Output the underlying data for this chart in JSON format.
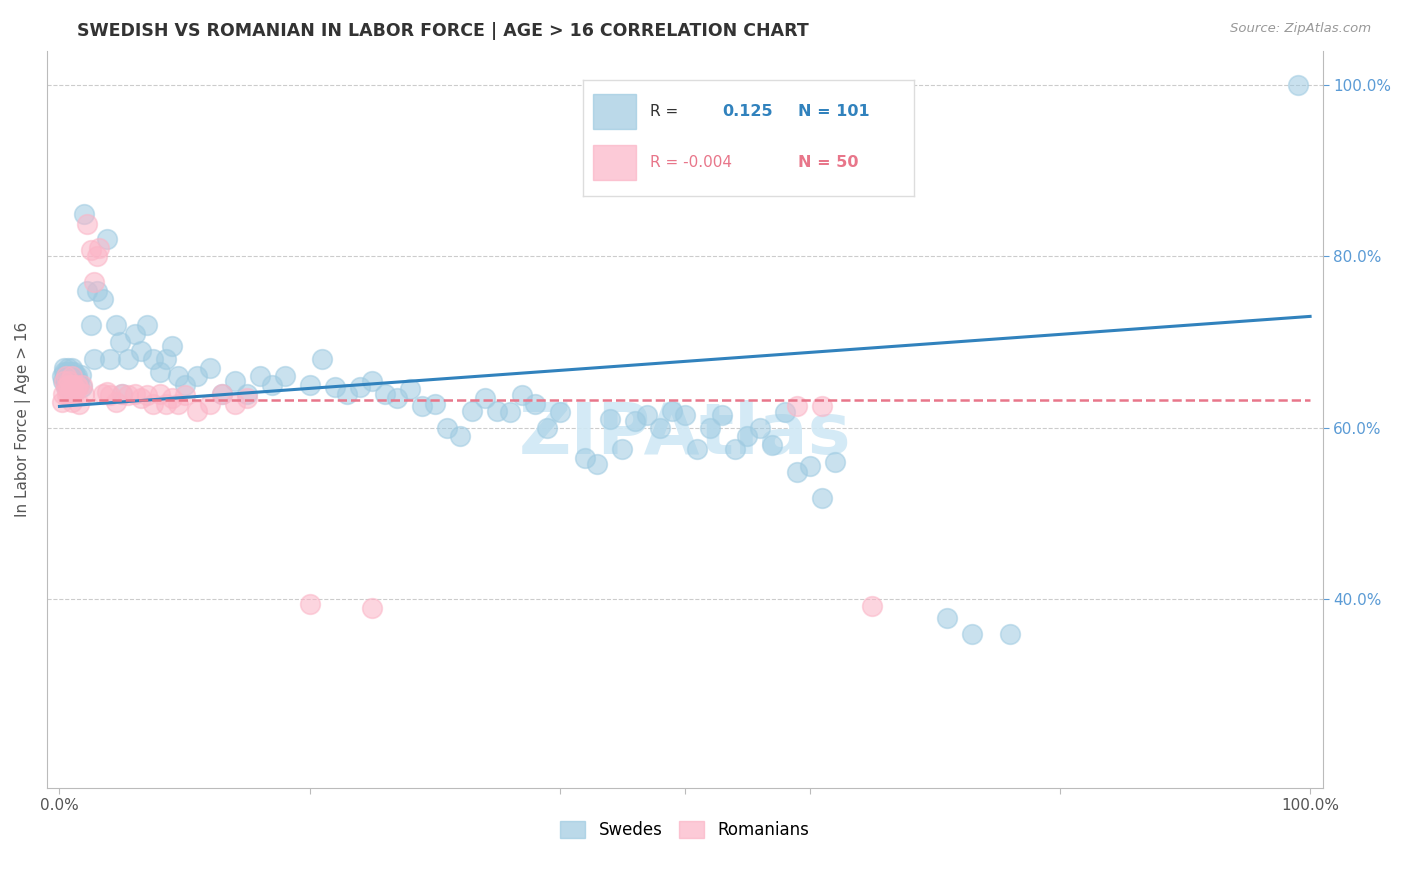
{
  "title": "SWEDISH VS ROMANIAN IN LABOR FORCE | AGE > 16 CORRELATION CHART",
  "source": "Source: ZipAtlas.com",
  "ylabel": "In Labor Force | Age > 16",
  "right_yticks": [
    0.4,
    0.6,
    0.8,
    1.0
  ],
  "right_yticklabels": [
    "40.0%",
    "60.0%",
    "80.0%",
    "100.0%"
  ],
  "legend_blue_r": "0.125",
  "legend_blue_n": "101",
  "legend_pink_r": "-0.004",
  "legend_pink_n": "50",
  "blue_color": "#9ecae1",
  "blue_edge_color": "#9ecae1",
  "pink_color": "#fbb4c6",
  "pink_edge_color": "#fbb4c6",
  "blue_line_color": "#3182bd",
  "pink_line_color": "#e8768a",
  "watermark_color": "#d0e8f5",
  "grid_color": "#cccccc",
  "ylim_min": 0.18,
  "ylim_max": 1.04,
  "xlim_min": -0.01,
  "xlim_max": 1.01,
  "blue_x": [
    0.002,
    0.003,
    0.004,
    0.004,
    0.005,
    0.005,
    0.005,
    0.006,
    0.006,
    0.007,
    0.007,
    0.008,
    0.008,
    0.009,
    0.009,
    0.01,
    0.01,
    0.011,
    0.012,
    0.012,
    0.013,
    0.014,
    0.015,
    0.016,
    0.017,
    0.018,
    0.02,
    0.022,
    0.025,
    0.028,
    0.03,
    0.035,
    0.038,
    0.04,
    0.045,
    0.048,
    0.05,
    0.055,
    0.06,
    0.065,
    0.07,
    0.075,
    0.08,
    0.085,
    0.09,
    0.095,
    0.1,
    0.11,
    0.12,
    0.13,
    0.14,
    0.15,
    0.16,
    0.17,
    0.18,
    0.2,
    0.21,
    0.22,
    0.23,
    0.24,
    0.25,
    0.26,
    0.27,
    0.28,
    0.29,
    0.3,
    0.31,
    0.32,
    0.33,
    0.34,
    0.35,
    0.36,
    0.37,
    0.38,
    0.39,
    0.4,
    0.42,
    0.43,
    0.44,
    0.45,
    0.46,
    0.47,
    0.48,
    0.49,
    0.5,
    0.51,
    0.52,
    0.53,
    0.54,
    0.55,
    0.56,
    0.57,
    0.58,
    0.59,
    0.6,
    0.61,
    0.62,
    0.71,
    0.73,
    0.76,
    0.99
  ],
  "blue_y": [
    0.66,
    0.655,
    0.665,
    0.67,
    0.66,
    0.655,
    0.648,
    0.665,
    0.658,
    0.67,
    0.652,
    0.66,
    0.648,
    0.665,
    0.658,
    0.67,
    0.645,
    0.658,
    0.665,
    0.655,
    0.658,
    0.66,
    0.655,
    0.65,
    0.662,
    0.648,
    0.85,
    0.76,
    0.72,
    0.68,
    0.76,
    0.75,
    0.82,
    0.68,
    0.72,
    0.7,
    0.64,
    0.68,
    0.71,
    0.69,
    0.72,
    0.68,
    0.665,
    0.68,
    0.695,
    0.66,
    0.65,
    0.66,
    0.67,
    0.64,
    0.655,
    0.64,
    0.66,
    0.65,
    0.66,
    0.65,
    0.68,
    0.648,
    0.64,
    0.648,
    0.655,
    0.64,
    0.635,
    0.645,
    0.625,
    0.628,
    0.6,
    0.59,
    0.62,
    0.635,
    0.62,
    0.618,
    0.638,
    0.628,
    0.6,
    0.618,
    0.565,
    0.558,
    0.61,
    0.575,
    0.608,
    0.615,
    0.6,
    0.62,
    0.615,
    0.575,
    0.6,
    0.615,
    0.575,
    0.59,
    0.6,
    0.58,
    0.618,
    0.548,
    0.555,
    0.518,
    0.56,
    0.378,
    0.36,
    0.36,
    1.0
  ],
  "pink_x": [
    0.002,
    0.003,
    0.004,
    0.005,
    0.005,
    0.006,
    0.007,
    0.008,
    0.008,
    0.009,
    0.01,
    0.01,
    0.011,
    0.012,
    0.013,
    0.014,
    0.015,
    0.016,
    0.018,
    0.02,
    0.022,
    0.025,
    0.028,
    0.03,
    0.032,
    0.035,
    0.038,
    0.04,
    0.045,
    0.05,
    0.055,
    0.06,
    0.065,
    0.07,
    0.075,
    0.08,
    0.085,
    0.09,
    0.095,
    0.1,
    0.11,
    0.12,
    0.13,
    0.14,
    0.15,
    0.2,
    0.25,
    0.59,
    0.61,
    0.65
  ],
  "pink_y": [
    0.63,
    0.64,
    0.655,
    0.66,
    0.648,
    0.638,
    0.65,
    0.64,
    0.655,
    0.65,
    0.66,
    0.63,
    0.65,
    0.64,
    0.645,
    0.65,
    0.648,
    0.628,
    0.65,
    0.64,
    0.838,
    0.808,
    0.77,
    0.8,
    0.81,
    0.64,
    0.642,
    0.638,
    0.63,
    0.64,
    0.638,
    0.64,
    0.635,
    0.638,
    0.628,
    0.64,
    0.628,
    0.635,
    0.628,
    0.638,
    0.62,
    0.628,
    0.64,
    0.628,
    0.635,
    0.395,
    0.39,
    0.625,
    0.625,
    0.392
  ]
}
